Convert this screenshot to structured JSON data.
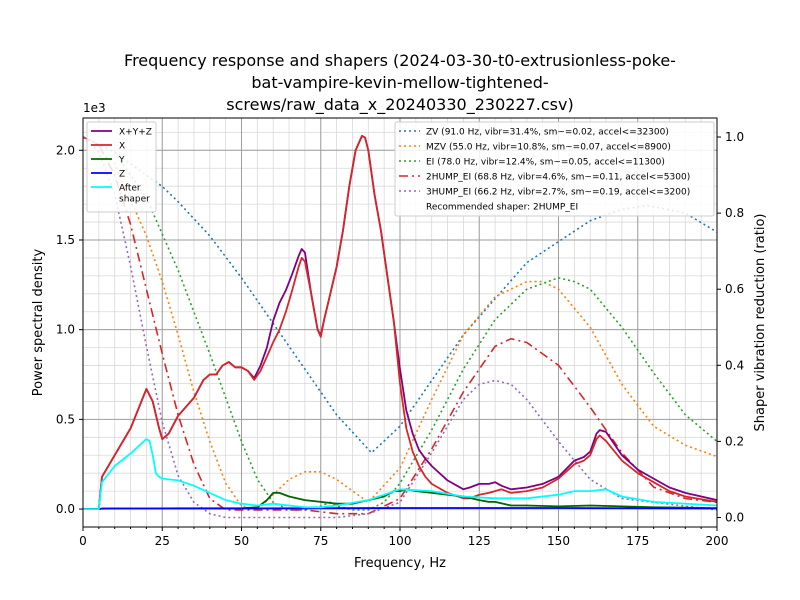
{
  "chart_data": {
    "type": "line",
    "title_lines": [
      "Frequency response and shapers (2024-03-30-t0-extrusionless-poke-",
      "bat-vampire-kevin-mellow-tightened-",
      "screws/raw_data_x_20240330_230227.csv)"
    ],
    "xlabel": "Frequency, Hz",
    "ylabel": "Power spectral density",
    "y2label": "Shaper vibration reduction (ratio)",
    "y_multiplier": "1e3",
    "xlim": [
      0,
      200
    ],
    "ylim": [
      -0.1,
      2.18
    ],
    "y2lim": [
      -0.025,
      1.05
    ],
    "xticks": [
      0,
      25,
      50,
      75,
      100,
      125,
      150,
      175,
      200
    ],
    "xtick_labels": [
      "0",
      "25",
      "50",
      "75",
      "100",
      "125",
      "150",
      "175",
      "200"
    ],
    "yticks": [
      0.0,
      0.5,
      1.0,
      1.5,
      2.0
    ],
    "ytick_labels": [
      "0.0",
      "0.5",
      "1.0",
      "1.5",
      "2.0"
    ],
    "y2ticks": [
      0.0,
      0.2,
      0.4,
      0.6,
      0.8,
      1.0
    ],
    "y2tick_labels": [
      "0.0",
      "0.2",
      "0.4",
      "0.6",
      "0.8",
      "1.0"
    ],
    "grid": true,
    "legend_left_position": "top-left",
    "legend_right_position": "top-right",
    "psd_series": [
      {
        "name": "X+Y+Z",
        "color": "#800080",
        "x": [
          0,
          5,
          6,
          10,
          15,
          20,
          22,
          24,
          25,
          27,
          30,
          35,
          38,
          40,
          42,
          44,
          46,
          48,
          50,
          52,
          54,
          56,
          58,
          60,
          62,
          64,
          66,
          68,
          69,
          70,
          72,
          74,
          75,
          76,
          78,
          80,
          82,
          84,
          86,
          88,
          89,
          90,
          92,
          94,
          96,
          98,
          100,
          102,
          104,
          106,
          108,
          110,
          115,
          120,
          122,
          125,
          128,
          130,
          132,
          135,
          140,
          145,
          150,
          155,
          158,
          160,
          162,
          163,
          165,
          170,
          175,
          180,
          185,
          190,
          200
        ],
        "y": [
          0,
          0,
          0.18,
          0.3,
          0.45,
          0.67,
          0.6,
          0.45,
          0.39,
          0.42,
          0.52,
          0.62,
          0.72,
          0.75,
          0.75,
          0.8,
          0.82,
          0.79,
          0.79,
          0.77,
          0.73,
          0.8,
          0.9,
          1.05,
          1.15,
          1.22,
          1.31,
          1.41,
          1.45,
          1.43,
          1.2,
          1.0,
          0.97,
          1.05,
          1.2,
          1.35,
          1.55,
          1.8,
          2.0,
          2.08,
          2.07,
          2.0,
          1.75,
          1.55,
          1.3,
          1.05,
          0.78,
          0.55,
          0.42,
          0.33,
          0.28,
          0.24,
          0.16,
          0.11,
          0.12,
          0.14,
          0.14,
          0.15,
          0.13,
          0.11,
          0.12,
          0.14,
          0.18,
          0.27,
          0.29,
          0.32,
          0.42,
          0.44,
          0.43,
          0.3,
          0.22,
          0.17,
          0.12,
          0.09,
          0.05
        ]
      },
      {
        "name": "X",
        "color": "#d62728",
        "x": [
          0,
          5,
          6,
          10,
          15,
          20,
          22,
          24,
          25,
          27,
          30,
          35,
          38,
          40,
          42,
          44,
          46,
          48,
          50,
          52,
          54,
          56,
          58,
          60,
          62,
          64,
          66,
          68,
          69,
          70,
          72,
          74,
          75,
          76,
          78,
          80,
          82,
          84,
          86,
          88,
          89,
          90,
          92,
          94,
          96,
          98,
          100,
          102,
          104,
          106,
          108,
          110,
          115,
          120,
          122,
          125,
          128,
          130,
          132,
          135,
          140,
          145,
          150,
          155,
          158,
          160,
          162,
          163,
          165,
          170,
          175,
          180,
          185,
          190,
          200
        ],
        "y": [
          0,
          0,
          0.18,
          0.3,
          0.45,
          0.67,
          0.6,
          0.45,
          0.39,
          0.42,
          0.52,
          0.62,
          0.72,
          0.75,
          0.75,
          0.8,
          0.82,
          0.79,
          0.79,
          0.77,
          0.72,
          0.77,
          0.85,
          0.93,
          1.0,
          1.1,
          1.22,
          1.35,
          1.4,
          1.38,
          1.2,
          1.0,
          0.96,
          1.05,
          1.2,
          1.35,
          1.55,
          1.8,
          2.0,
          2.08,
          2.07,
          2.0,
          1.75,
          1.55,
          1.3,
          1.05,
          0.7,
          0.45,
          0.32,
          0.24,
          0.18,
          0.14,
          0.09,
          0.06,
          0.06,
          0.08,
          0.09,
          0.1,
          0.11,
          0.09,
          0.1,
          0.12,
          0.17,
          0.25,
          0.27,
          0.3,
          0.39,
          0.41,
          0.38,
          0.27,
          0.2,
          0.15,
          0.1,
          0.07,
          0.04
        ]
      },
      {
        "name": "Y",
        "color": "#006400",
        "x": [
          0,
          5,
          6,
          10,
          20,
          30,
          40,
          50,
          55,
          58,
          60,
          62,
          65,
          70,
          75,
          80,
          85,
          90,
          95,
          98,
          100,
          102,
          105,
          110,
          115,
          120,
          125,
          128,
          130,
          135,
          140,
          150,
          160,
          170,
          180,
          190,
          200
        ],
        "y": [
          0,
          0,
          0.002,
          0.003,
          0.003,
          0.004,
          0.004,
          0.004,
          0.01,
          0.05,
          0.09,
          0.09,
          0.07,
          0.05,
          0.04,
          0.03,
          0.03,
          0.05,
          0.07,
          0.1,
          0.1,
          0.11,
          0.1,
          0.09,
          0.08,
          0.07,
          0.05,
          0.04,
          0.04,
          0.02,
          0.02,
          0.015,
          0.02,
          0.015,
          0.01,
          0.008,
          0.005
        ]
      },
      {
        "name": "Z",
        "color": "#0000ff",
        "x": [
          0,
          5,
          6,
          50,
          100,
          150,
          200
        ],
        "y": [
          0,
          0,
          0.003,
          0.003,
          0.006,
          0.006,
          0.003
        ]
      },
      {
        "name": "After\nshaper",
        "color": "#00ffff",
        "x": [
          0,
          5,
          6,
          10,
          15,
          20,
          21,
          22,
          23,
          24,
          25,
          30,
          35,
          40,
          45,
          50,
          55,
          60,
          65,
          70,
          75,
          80,
          90,
          100,
          110,
          120,
          130,
          140,
          150,
          155,
          160,
          165,
          170,
          180,
          200
        ],
        "y": [
          0,
          0,
          0.15,
          0.24,
          0.31,
          0.39,
          0.38,
          0.3,
          0.2,
          0.18,
          0.17,
          0.16,
          0.13,
          0.09,
          0.05,
          0.03,
          0.02,
          0.03,
          0.02,
          0.01,
          0.01,
          0.02,
          0.05,
          0.11,
          0.1,
          0.07,
          0.06,
          0.06,
          0.08,
          0.1,
          0.1,
          0.11,
          0.07,
          0.04,
          0.02
        ]
      }
    ],
    "shaper_series": [
      {
        "name": "ZV (91.0 Hz, vibr=31.4%, sm~=0.02, accel<=32300)",
        "color": "#1f77b4",
        "dash": "dotted",
        "x": [
          0,
          10,
          20,
          25,
          30,
          40,
          50,
          60,
          70,
          80,
          91,
          100,
          120,
          140,
          160,
          170,
          178,
          190,
          200
        ],
        "y": [
          1.0,
          0.96,
          0.9,
          0.87,
          0.83,
          0.74,
          0.63,
          0.51,
          0.39,
          0.27,
          0.17,
          0.24,
          0.48,
          0.67,
          0.78,
          0.81,
          0.82,
          0.8,
          0.75
        ]
      },
      {
        "name": "MZV (55.0 Hz, vibr=10.8%, sm~=0.07, accel<=8900)",
        "color": "#ff7f0e",
        "dash": "dotted",
        "x": [
          0,
          10,
          20,
          25,
          30,
          35,
          40,
          45,
          50,
          55,
          60,
          65,
          70,
          75,
          80,
          90,
          100,
          110,
          120,
          130,
          140,
          145,
          150,
          160,
          170,
          180,
          190,
          200
        ],
        "y": [
          1.0,
          0.93,
          0.74,
          0.62,
          0.48,
          0.33,
          0.2,
          0.09,
          0.03,
          0.02,
          0.06,
          0.1,
          0.12,
          0.12,
          0.1,
          0.04,
          0.13,
          0.31,
          0.48,
          0.58,
          0.62,
          0.62,
          0.6,
          0.5,
          0.35,
          0.24,
          0.19,
          0.16
        ]
      },
      {
        "name": "EI (78.0 Hz, vibr=12.4%, sm~=0.05, accel<=11300)",
        "color": "#2ca02c",
        "dash": "dotted",
        "x": [
          0,
          10,
          20,
          30,
          40,
          50,
          55,
          60,
          65,
          70,
          75,
          78,
          80,
          85,
          90,
          95,
          100,
          110,
          120,
          130,
          140,
          150,
          155,
          160,
          170,
          180,
          190,
          200
        ],
        "y": [
          1.0,
          0.96,
          0.84,
          0.65,
          0.43,
          0.2,
          0.1,
          0.04,
          0.02,
          0.02,
          0.03,
          0.04,
          0.03,
          0.02,
          0.02,
          0.04,
          0.09,
          0.23,
          0.39,
          0.52,
          0.6,
          0.63,
          0.62,
          0.6,
          0.5,
          0.38,
          0.27,
          0.2
        ]
      },
      {
        "name": "2HUMP_EI (68.8 Hz, vibr=4.6%, sm~=0.11, accel<=5300)",
        "color": "#d62728",
        "dash": "dashdot",
        "x": [
          0,
          5,
          10,
          15,
          20,
          25,
          30,
          35,
          40,
          45,
          50,
          60,
          70,
          80,
          90,
          100,
          110,
          120,
          130,
          135,
          140,
          150,
          160,
          170,
          180,
          190,
          200
        ],
        "y": [
          1.0,
          0.98,
          0.9,
          0.77,
          0.6,
          0.43,
          0.27,
          0.14,
          0.05,
          0.02,
          0.02,
          0.02,
          0.02,
          0.01,
          0.01,
          0.05,
          0.18,
          0.33,
          0.45,
          0.47,
          0.46,
          0.4,
          0.29,
          0.17,
          0.08,
          0.05,
          0.04
        ]
      },
      {
        "name": "3HUMP_EI (66.2 Hz, vibr=2.7%, sm~=0.19, accel<=3200)",
        "color": "#9467bd",
        "dash": "dotted",
        "x": [
          0,
          5,
          10,
          15,
          20,
          25,
          30,
          35,
          40,
          45,
          50,
          60,
          70,
          80,
          90,
          100,
          110,
          120,
          125,
          130,
          135,
          140,
          150,
          160,
          170,
          180,
          190,
          200
        ],
        "y": [
          1.0,
          0.96,
          0.85,
          0.66,
          0.45,
          0.25,
          0.11,
          0.04,
          0.01,
          0.0,
          0.0,
          0.0,
          0.0,
          0.0,
          0.01,
          0.04,
          0.17,
          0.31,
          0.35,
          0.36,
          0.35,
          0.31,
          0.2,
          0.1,
          0.05,
          0.04,
          0.03,
          0.02
        ]
      }
    ],
    "recommended_label": "Recommended shaper: 2HUMP_EI"
  }
}
